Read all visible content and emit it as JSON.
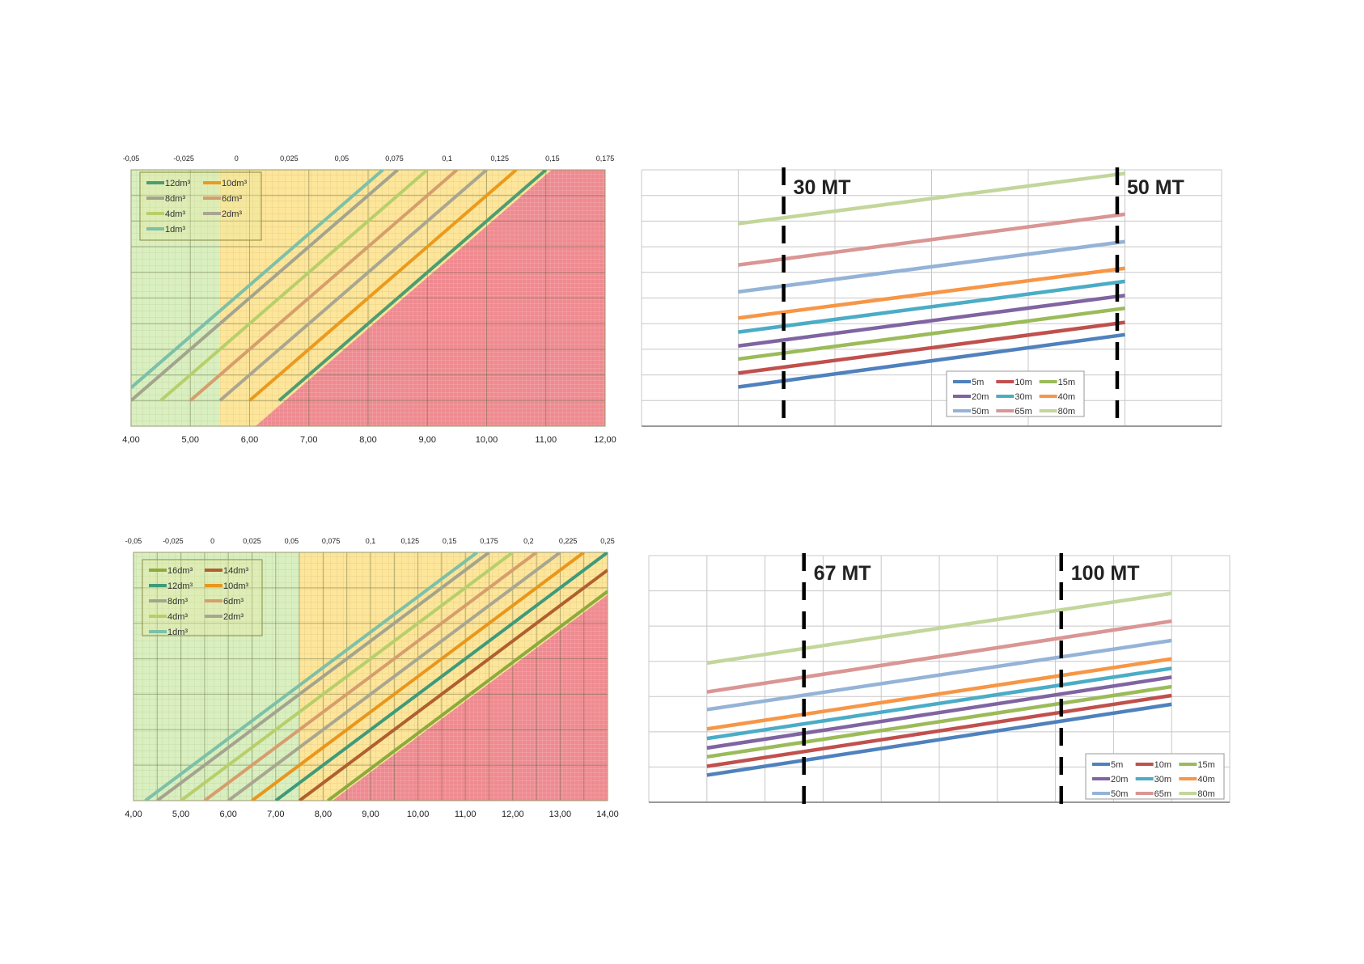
{
  "chart_data": [
    {
      "type": "line",
      "title": "",
      "xlabel": "",
      "ylabel": "",
      "xlim": [
        4,
        12
      ],
      "ylim": [
        0,
        10
      ],
      "x_ticks": [
        "4,00",
        "5,00",
        "6,00",
        "7,00",
        "8,00",
        "9,00",
        "10,00",
        "11,00",
        "12,00"
      ],
      "top_ticks": [
        "-0,05",
        "-0,025",
        "0",
        "0,025",
        "0,05",
        "0,075",
        "0,1",
        "0,125",
        "0,15",
        "0,175"
      ],
      "grid": true,
      "zones": {
        "green": [
          4,
          5.5
        ],
        "yellow": [
          5.5,
          12
        ],
        "red": [
          [
            6.1,
            0
          ],
          [
            11.1,
            10
          ],
          [
            12,
            10
          ],
          [
            12,
            0
          ]
        ]
      },
      "legend_position": "top-left",
      "legend_columns": 2,
      "series": [
        {
          "name": "12dm³",
          "color": "#4e9c72",
          "points": [
            [
              6.5,
              1
            ],
            [
              11,
              10
            ]
          ]
        },
        {
          "name": "10dm³",
          "color": "#eb9a1c",
          "points": [
            [
              6,
              1
            ],
            [
              10.5,
              10
            ]
          ]
        },
        {
          "name": "8dm³",
          "color": "#a3a48e",
          "points": [
            [
              4,
              1
            ],
            [
              8.5,
              10
            ]
          ]
        },
        {
          "name": "6dm³",
          "color": "#d69e6c",
          "points": [
            [
              5,
              1
            ],
            [
              9.5,
              10
            ]
          ]
        },
        {
          "name": "4dm³",
          "color": "#b7cf6a",
          "points": [
            [
              4.5,
              1
            ],
            [
              9,
              10
            ]
          ]
        },
        {
          "name": "2dm³",
          "color": "#a9a690",
          "points": [
            [
              5.5,
              1
            ],
            [
              10,
              10
            ]
          ]
        },
        {
          "name": "1dm³",
          "color": "#7cc0a8",
          "points": [
            [
              4,
              1.5
            ],
            [
              8.25,
              10
            ]
          ]
        }
      ]
    },
    {
      "type": "line",
      "title": "",
      "xlim": [
        0,
        6
      ],
      "ylim": [
        0,
        10
      ],
      "grid": true,
      "legend_position": "bottom-right",
      "legend_columns": 3,
      "markers": [
        {
          "x": 1.47,
          "label": "30 MT"
        },
        {
          "x": 4.92,
          "label": "50 MT"
        }
      ],
      "series": [
        {
          "name": "5m",
          "color": "#4f81bd",
          "points": [
            [
              1,
              1.53
            ],
            [
              5,
              3.57
            ]
          ]
        },
        {
          "name": "10m",
          "color": "#c0504d",
          "points": [
            [
              1,
              2.07
            ],
            [
              5,
              4.05
            ]
          ]
        },
        {
          "name": "15m",
          "color": "#9bbb59",
          "points": [
            [
              1,
              2.62
            ],
            [
              5,
              4.6
            ]
          ]
        },
        {
          "name": "20m",
          "color": "#8064a2",
          "points": [
            [
              1,
              3.13
            ],
            [
              5,
              5.1
            ]
          ]
        },
        {
          "name": "30m",
          "color": "#4bacc6",
          "points": [
            [
              1,
              3.67
            ],
            [
              5,
              5.65
            ]
          ]
        },
        {
          "name": "40m",
          "color": "#f79646",
          "points": [
            [
              1,
              4.22
            ],
            [
              5,
              6.16
            ]
          ]
        },
        {
          "name": "50m",
          "color": "#95b3d7",
          "points": [
            [
              1,
              5.24
            ],
            [
              5,
              7.2
            ]
          ]
        },
        {
          "name": "65m",
          "color": "#d99694",
          "points": [
            [
              1,
              6.29
            ],
            [
              5,
              8.27
            ]
          ]
        },
        {
          "name": "80m",
          "color": "#c3d69b",
          "points": [
            [
              1,
              7.9
            ],
            [
              5,
              9.86
            ]
          ]
        }
      ]
    },
    {
      "type": "line",
      "title": "",
      "xlim": [
        4,
        14
      ],
      "ylim": [
        0,
        7
      ],
      "x_ticks": [
        "4,00",
        "5,00",
        "6,00",
        "7,00",
        "8,00",
        "9,00",
        "10,00",
        "11,00",
        "12,00",
        "13,00",
        "14,00"
      ],
      "top_ticks": [
        "-0,05",
        "-0,025",
        "0",
        "0,025",
        "0,05",
        "0,075",
        "0,1",
        "0,125",
        "0,15",
        "0,175",
        "0,2",
        "0,225",
        "0,25"
      ],
      "grid": true,
      "zones": {
        "green": [
          4,
          7.5
        ],
        "yellow": [
          7.5,
          14
        ],
        "red": [
          [
            8.2,
            0
          ],
          [
            14,
            5.8
          ],
          [
            14,
            0
          ]
        ]
      },
      "legend_position": "top-left",
      "legend_columns": 2,
      "series": [
        {
          "name": "16dm³",
          "color": "#8cab3c",
          "points": [
            [
              8.1,
              0
            ],
            [
              14,
              5.9
            ]
          ]
        },
        {
          "name": "14dm³",
          "color": "#b0602e",
          "points": [
            [
              7.5,
              0
            ],
            [
              14,
              6.5
            ]
          ]
        },
        {
          "name": "12dm³",
          "color": "#3f9a7a",
          "points": [
            [
              7,
              0
            ],
            [
              14,
              7
            ]
          ]
        },
        {
          "name": "10dm³",
          "color": "#e9961c",
          "points": [
            [
              6.5,
              0
            ],
            [
              13.5,
              7
            ]
          ]
        },
        {
          "name": "8dm³",
          "color": "#a3a48e",
          "points": [
            [
              4.5,
              0
            ],
            [
              11.5,
              7
            ]
          ]
        },
        {
          "name": "6dm³",
          "color": "#d69e6c",
          "points": [
            [
              5.5,
              0
            ],
            [
              12.5,
              7
            ]
          ]
        },
        {
          "name": "4dm³",
          "color": "#b7cf6a",
          "points": [
            [
              5,
              0
            ],
            [
              12,
              7
            ]
          ]
        },
        {
          "name": "2dm³",
          "color": "#a9a690",
          "points": [
            [
              6,
              0
            ],
            [
              13,
              7
            ]
          ]
        },
        {
          "name": "1dm³",
          "color": "#7cc0a8",
          "points": [
            [
              4.25,
              0
            ],
            [
              11.25,
              7
            ]
          ]
        }
      ]
    },
    {
      "type": "line",
      "title": "",
      "xlim": [
        0,
        10
      ],
      "ylim": [
        0,
        7
      ],
      "grid": true,
      "legend_position": "bottom-right",
      "legend_columns": 3,
      "markers": [
        {
          "x": 2.67,
          "label": "67 MT"
        },
        {
          "x": 7.1,
          "label": "100 MT"
        }
      ],
      "series": [
        {
          "name": "5m",
          "color": "#4f81bd",
          "points": [
            [
              1,
              0.77
            ],
            [
              9,
              2.78
            ]
          ]
        },
        {
          "name": "10m",
          "color": "#c0504d",
          "points": [
            [
              1,
              1.02
            ],
            [
              9,
              3.03
            ]
          ]
        },
        {
          "name": "15m",
          "color": "#9bbb59",
          "points": [
            [
              1,
              1.29
            ],
            [
              9,
              3.28
            ]
          ]
        },
        {
          "name": "20m",
          "color": "#8064a2",
          "points": [
            [
              1,
              1.54
            ],
            [
              9,
              3.55
            ]
          ]
        },
        {
          "name": "30m",
          "color": "#4bacc6",
          "points": [
            [
              1,
              1.81
            ],
            [
              9,
              3.8
            ]
          ]
        },
        {
          "name": "40m",
          "color": "#f79646",
          "points": [
            [
              1,
              2.08
            ],
            [
              9,
              4.07
            ]
          ]
        },
        {
          "name": "50m",
          "color": "#95b3d7",
          "points": [
            [
              1,
              2.63
            ],
            [
              9,
              4.59
            ]
          ]
        },
        {
          "name": "65m",
          "color": "#d99694",
          "points": [
            [
              1,
              3.13
            ],
            [
              9,
              5.14
            ]
          ]
        },
        {
          "name": "80m",
          "color": "#c3d69b",
          "points": [
            [
              1,
              3.95
            ],
            [
              9,
              5.93
            ]
          ]
        }
      ]
    }
  ]
}
